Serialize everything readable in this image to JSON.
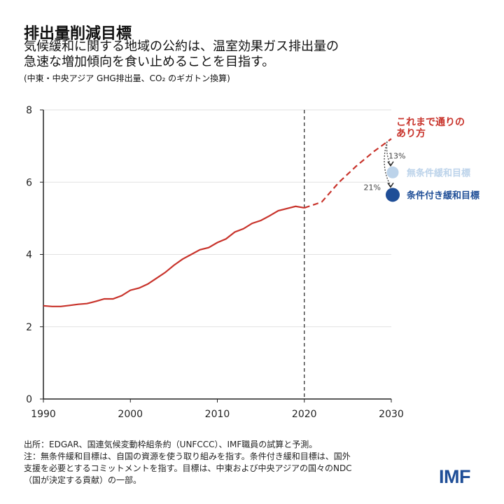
{
  "header": {
    "title": "排出量削減目標",
    "subtitle_lines": [
      "気候緩和に関する地域の公約は、温室効果ガス排出量の",
      "急速な増加傾向を食い止めることを目指す。"
    ],
    "unit": "(中東・中央アジア GHG排出量、CO₂ のギガトン換算)"
  },
  "chart_data": {
    "type": "line",
    "title": "",
    "xlabel": "",
    "ylabel": "",
    "xlim": [
      1990,
      2030
    ],
    "ylim": [
      0,
      8
    ],
    "x_ticks": [
      "1990",
      "2000",
      "2010",
      "2020",
      "2030"
    ],
    "y_ticks": [
      "0",
      "2",
      "4",
      "6",
      "8"
    ],
    "grid": "horizontal",
    "vertical_marker": 2020,
    "series": [
      {
        "style": "solid",
        "color": "#c8332b",
        "x": [
          1990,
          1991,
          1992,
          1993,
          1994,
          1995,
          1996,
          1997,
          1998,
          1999,
          2000,
          2001,
          2002,
          2003,
          2004,
          2005,
          2006,
          2007,
          2008,
          2009,
          2010,
          2011,
          2012,
          2013,
          2014,
          2015,
          2016,
          2017,
          2018,
          2019,
          2020
        ],
        "y": [
          2.58,
          2.56,
          2.56,
          2.59,
          2.62,
          2.64,
          2.7,
          2.77,
          2.77,
          2.86,
          3.01,
          3.07,
          3.18,
          3.34,
          3.5,
          3.7,
          3.87,
          4.0,
          4.13,
          4.19,
          4.33,
          4.43,
          4.62,
          4.71,
          4.86,
          4.94,
          5.07,
          5.21,
          5.27,
          5.33,
          5.29
        ]
      },
      {
        "name": "これまで通りのあり方",
        "style": "dashed",
        "color": "#c8332b",
        "x": [
          2020,
          2022,
          2024,
          2026,
          2028,
          2030
        ],
        "y": [
          5.29,
          5.45,
          6.0,
          6.45,
          6.85,
          7.2
        ]
      }
    ],
    "targets": [
      {
        "name": "無条件緩和目標",
        "year": 2030,
        "value": 6.27,
        "reduction": "13%",
        "color": "#bcd3ea"
      },
      {
        "name": "条件付き緩和目標",
        "year": 2030,
        "value": 5.65,
        "reduction": "21%",
        "color": "#1f4e97"
      }
    ],
    "annotation_lines": [
      "これまで通りの",
      "あり方"
    ]
  },
  "footer": {
    "lines": [
      "出所：EDGAR、国連気候変動枠組条約（UNFCCC）、IMF職員の試算と予測。",
      "注：無条件緩和目標は、自国の資源を使う取り組みを指す。条件付き緩和目標は、国外",
      "支援を必要とするコミットメントを指す。目標は、中東および中央アジアの国々のNDC",
      "（国が決定する貢献）の一部。"
    ],
    "logo": "IMF"
  }
}
